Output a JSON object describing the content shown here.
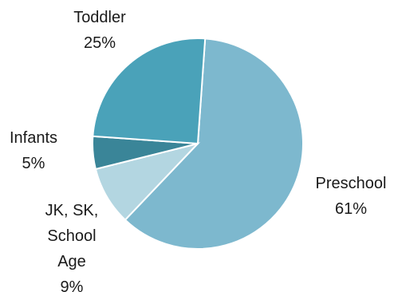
{
  "chart_data": {
    "type": "pie",
    "slices": [
      {
        "label": "Preschool",
        "percent_label": "61%",
        "value": 61,
        "color": "#7db8ce"
      },
      {
        "label": "JK, SK, School Age",
        "label_lines": [
          "JK, SK,",
          "School",
          "Age"
        ],
        "percent_label": "9%",
        "value": 9,
        "color": "#b3d6e1"
      },
      {
        "label": "Infants",
        "percent_label": "5%",
        "value": 5,
        "color": "#3a8598"
      },
      {
        "label": "Toddler",
        "percent_label": "25%",
        "value": 25,
        "color": "#4aa2b9"
      }
    ]
  }
}
